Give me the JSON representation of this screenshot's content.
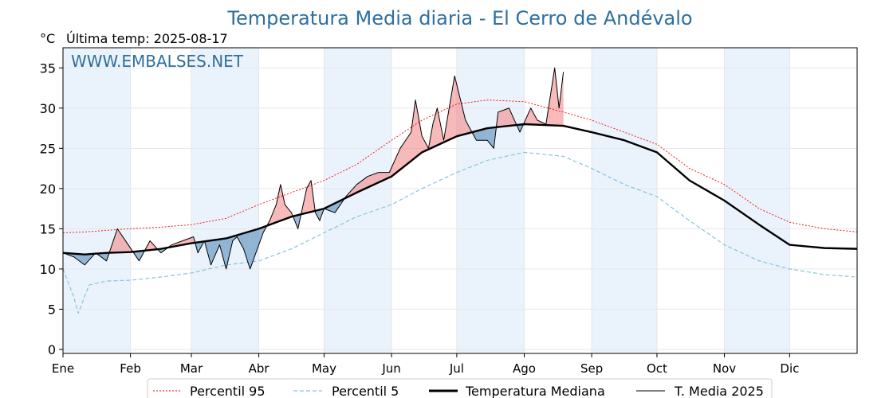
{
  "chart_data": {
    "type": "line",
    "title": "Temperatura Media diaria - El Cerro de Andévalo",
    "unit_label": "°C",
    "last_temp_label": "Última temp: 2025-08-17",
    "watermark": "WWW.EMBALSES.NET",
    "ylim": [
      -0.5,
      37.5
    ],
    "yticks": [
      0,
      5,
      10,
      15,
      20,
      25,
      30,
      35
    ],
    "x_axis": "día del año",
    "xlim": [
      0,
      365
    ],
    "month_ticks": [
      0,
      31,
      59,
      90,
      120,
      151,
      181,
      212,
      243,
      273,
      304,
      334
    ],
    "month_labels": [
      "Ene",
      "Feb",
      "Mar",
      "Abr",
      "May",
      "Jun",
      "Jul",
      "Ago",
      "Sep",
      "Oct",
      "Nov",
      "Dic"
    ],
    "grid": true,
    "legend_position": "bottom",
    "colors": {
      "p95": "#ff0000",
      "p5": "#87c4dc",
      "median": "#000000",
      "current": "#000000",
      "above": "#f08080",
      "below": "#4682b4",
      "month_shade": "#eaf3fb"
    },
    "series": [
      {
        "name": "Percentil 95",
        "style": "dotted",
        "points": [
          [
            0,
            14.5
          ],
          [
            10,
            14.6
          ],
          [
            20,
            14.8
          ],
          [
            31,
            15.0
          ],
          [
            45,
            15.2
          ],
          [
            59,
            15.5
          ],
          [
            75,
            16.3
          ],
          [
            90,
            18.0
          ],
          [
            105,
            19.5
          ],
          [
            120,
            21.0
          ],
          [
            135,
            23.0
          ],
          [
            151,
            26.0
          ],
          [
            165,
            28.5
          ],
          [
            181,
            30.5
          ],
          [
            195,
            31.0
          ],
          [
            212,
            30.8
          ],
          [
            230,
            29.5
          ],
          [
            243,
            28.5
          ],
          [
            258,
            27.0
          ],
          [
            273,
            25.5
          ],
          [
            288,
            22.5
          ],
          [
            304,
            20.5
          ],
          [
            320,
            17.5
          ],
          [
            334,
            15.8
          ],
          [
            350,
            15.0
          ],
          [
            365,
            14.6
          ]
        ]
      },
      {
        "name": "Percentil 5",
        "style": "dashed",
        "points": [
          [
            0,
            10.0
          ],
          [
            5,
            6.5
          ],
          [
            7,
            4.5
          ],
          [
            12,
            8.0
          ],
          [
            20,
            8.5
          ],
          [
            31,
            8.6
          ],
          [
            45,
            9.0
          ],
          [
            59,
            9.5
          ],
          [
            75,
            10.5
          ],
          [
            90,
            11.0
          ],
          [
            105,
            12.5
          ],
          [
            120,
            14.5
          ],
          [
            135,
            16.5
          ],
          [
            151,
            18.0
          ],
          [
            165,
            20.0
          ],
          [
            181,
            22.0
          ],
          [
            195,
            23.5
          ],
          [
            212,
            24.5
          ],
          [
            230,
            24.0
          ],
          [
            243,
            22.5
          ],
          [
            258,
            20.5
          ],
          [
            273,
            19.0
          ],
          [
            288,
            16.0
          ],
          [
            304,
            13.0
          ],
          [
            320,
            11.0
          ],
          [
            334,
            10.0
          ],
          [
            350,
            9.3
          ],
          [
            365,
            9.0
          ]
        ]
      },
      {
        "name": "Temperatura Mediana",
        "style": "solid-thick",
        "points": [
          [
            0,
            12.0
          ],
          [
            10,
            11.8
          ],
          [
            20,
            12.0
          ],
          [
            31,
            12.1
          ],
          [
            45,
            12.5
          ],
          [
            59,
            13.2
          ],
          [
            75,
            13.8
          ],
          [
            90,
            15.0
          ],
          [
            105,
            16.5
          ],
          [
            120,
            17.5
          ],
          [
            135,
            19.5
          ],
          [
            151,
            21.5
          ],
          [
            165,
            24.5
          ],
          [
            181,
            26.5
          ],
          [
            195,
            27.5
          ],
          [
            212,
            28.0
          ],
          [
            230,
            27.8
          ],
          [
            243,
            27.0
          ],
          [
            258,
            26.0
          ],
          [
            273,
            24.5
          ],
          [
            288,
            21.0
          ],
          [
            304,
            18.5
          ],
          [
            320,
            15.5
          ],
          [
            334,
            13.0
          ],
          [
            350,
            12.6
          ],
          [
            365,
            12.5
          ]
        ]
      },
      {
        "name": "T. Media 2025",
        "style": "solid-thin",
        "points": [
          [
            0,
            12.0
          ],
          [
            5,
            11.5
          ],
          [
            10,
            10.5
          ],
          [
            15,
            12.0
          ],
          [
            20,
            11.0
          ],
          [
            25,
            15.0
          ],
          [
            30,
            13.0
          ],
          [
            35,
            11.0
          ],
          [
            40,
            13.5
          ],
          [
            45,
            12.0
          ],
          [
            50,
            13.0
          ],
          [
            55,
            13.5
          ],
          [
            60,
            14.0
          ],
          [
            62,
            12.0
          ],
          [
            65,
            13.5
          ],
          [
            68,
            10.5
          ],
          [
            72,
            13.0
          ],
          [
            75,
            10.0
          ],
          [
            78,
            13.5
          ],
          [
            80,
            14.0
          ],
          [
            83,
            12.5
          ],
          [
            86,
            10.0
          ],
          [
            90,
            13.0
          ],
          [
            92,
            14.5
          ],
          [
            95,
            16.0
          ],
          [
            98,
            18.0
          ],
          [
            100,
            20.5
          ],
          [
            102,
            18.0
          ],
          [
            105,
            17.0
          ],
          [
            108,
            15.0
          ],
          [
            112,
            20.0
          ],
          [
            114,
            21.0
          ],
          [
            116,
            17.0
          ],
          [
            118,
            16.0
          ],
          [
            120,
            17.5
          ],
          [
            125,
            17.0
          ],
          [
            130,
            19.0
          ],
          [
            135,
            20.5
          ],
          [
            140,
            21.5
          ],
          [
            145,
            22.0
          ],
          [
            150,
            22.0
          ],
          [
            155,
            25.0
          ],
          [
            160,
            27.0
          ],
          [
            162,
            31.0
          ],
          [
            165,
            26.5
          ],
          [
            168,
            25.0
          ],
          [
            170,
            28.0
          ],
          [
            172,
            30.0
          ],
          [
            175,
            26.0
          ],
          [
            180,
            34.0
          ],
          [
            185,
            28.5
          ],
          [
            188,
            27.0
          ],
          [
            190,
            26.0
          ],
          [
            195,
            26.0
          ],
          [
            198,
            25.0
          ],
          [
            200,
            29.5
          ],
          [
            205,
            30.0
          ],
          [
            210,
            27.0
          ],
          [
            215,
            30.0
          ],
          [
            218,
            28.5
          ],
          [
            222,
            28.0
          ],
          [
            226,
            35.0
          ],
          [
            228,
            30.0
          ],
          [
            230,
            34.5
          ]
        ]
      }
    ]
  },
  "legend": {
    "p95": "Percentil 95",
    "p5": "Percentil 5",
    "median": "Temperatura Mediana",
    "current": "T. Media 2025"
  }
}
